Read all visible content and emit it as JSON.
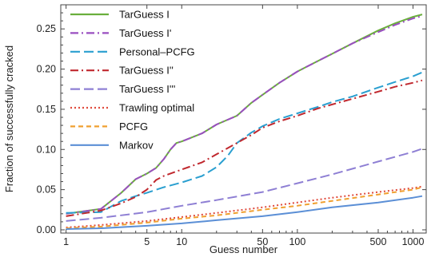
{
  "chart_data": {
    "type": "line",
    "xlabel": "Guess number",
    "ylabel": "Fraction of successfully cracked",
    "xscale": "log",
    "xlim": [
      0.9,
      1300
    ],
    "ylim": [
      -0.004,
      0.28
    ],
    "xticks": [
      1,
      5,
      10,
      50,
      100,
      500,
      1000
    ],
    "xtick_labels": [
      "1",
      "5",
      "10",
      "50",
      "100",
      "500",
      "1000"
    ],
    "yticks": [
      0,
      0.05,
      0.1,
      0.15,
      0.2,
      0.25
    ],
    "ytick_labels": [
      "0.00",
      "0.05",
      "0.10",
      "0.15",
      "0.20",
      "0.25"
    ],
    "grid": false,
    "legend_position": "top-left",
    "series": [
      {
        "name": "TarGuess I",
        "color": "#6aae3c",
        "dash": "solid",
        "x": [
          1,
          2,
          3,
          4,
          5,
          6,
          7,
          8,
          9,
          10,
          15,
          20,
          30,
          40,
          50,
          70,
          100,
          150,
          200,
          300,
          500,
          700,
          1000,
          1200
        ],
        "y": [
          0.02,
          0.026,
          0.046,
          0.063,
          0.07,
          0.077,
          0.088,
          0.1,
          0.108,
          0.11,
          0.12,
          0.131,
          0.142,
          0.158,
          0.168,
          0.183,
          0.197,
          0.21,
          0.219,
          0.232,
          0.248,
          0.257,
          0.265,
          0.268
        ]
      },
      {
        "name": "TarGuess I'",
        "color": "#9a4fc1",
        "dash": "dashdot",
        "x": [
          1,
          2,
          3,
          4,
          5,
          6,
          7,
          8,
          9,
          10,
          15,
          20,
          30,
          40,
          50,
          70,
          100,
          150,
          200,
          300,
          500,
          700,
          1000,
          1200
        ],
        "y": [
          0.02,
          0.026,
          0.046,
          0.063,
          0.07,
          0.077,
          0.088,
          0.1,
          0.108,
          0.11,
          0.12,
          0.131,
          0.142,
          0.158,
          0.168,
          0.183,
          0.197,
          0.21,
          0.219,
          0.232,
          0.246,
          0.255,
          0.263,
          0.266
        ]
      },
      {
        "name": "Personal–PCFG",
        "color": "#2a9fd0",
        "dash": "longdash",
        "x": [
          1,
          2,
          3,
          4,
          5,
          7,
          10,
          15,
          20,
          25,
          30,
          40,
          50,
          70,
          100,
          150,
          200,
          300,
          500,
          700,
          1000,
          1200
        ],
        "y": [
          0.021,
          0.022,
          0.036,
          0.042,
          0.046,
          0.053,
          0.059,
          0.067,
          0.078,
          0.092,
          0.108,
          0.121,
          0.129,
          0.138,
          0.145,
          0.153,
          0.159,
          0.166,
          0.177,
          0.184,
          0.191,
          0.196
        ]
      },
      {
        "name": "TarGuess I''",
        "color": "#c0282e",
        "dash": "dashdot",
        "x": [
          1,
          2,
          3,
          4,
          5,
          6,
          7,
          10,
          15,
          20,
          30,
          40,
          50,
          70,
          100,
          150,
          200,
          300,
          500,
          700,
          1000,
          1200
        ],
        "y": [
          0.017,
          0.024,
          0.033,
          0.041,
          0.05,
          0.062,
          0.067,
          0.075,
          0.084,
          0.094,
          0.108,
          0.118,
          0.127,
          0.135,
          0.142,
          0.151,
          0.156,
          0.163,
          0.172,
          0.178,
          0.183,
          0.186
        ]
      },
      {
        "name": "TarGuess I'''",
        "color": "#8e7fd4",
        "dash": "longdash",
        "x": [
          1,
          2,
          5,
          10,
          20,
          50,
          100,
          200,
          500,
          1000,
          1200
        ],
        "y": [
          0.011,
          0.015,
          0.022,
          0.03,
          0.037,
          0.047,
          0.058,
          0.069,
          0.085,
          0.097,
          0.101
        ]
      },
      {
        "name": "Trawling optimal",
        "color": "#e04a3c",
        "dash": "dotted",
        "x": [
          1,
          2,
          5,
          10,
          20,
          50,
          100,
          200,
          500,
          1000,
          1200
        ],
        "y": [
          0.003,
          0.006,
          0.011,
          0.016,
          0.021,
          0.028,
          0.034,
          0.04,
          0.047,
          0.052,
          0.054
        ]
      },
      {
        "name": "PCFG",
        "color": "#f0a030",
        "dash": "dashed",
        "x": [
          1,
          2,
          5,
          10,
          20,
          50,
          100,
          200,
          500,
          1000,
          1200
        ],
        "y": [
          0.002,
          0.004,
          0.009,
          0.014,
          0.018,
          0.025,
          0.03,
          0.036,
          0.044,
          0.05,
          0.053
        ]
      },
      {
        "name": "Markov",
        "color": "#5b8fd6",
        "dash": "solid",
        "x": [
          1,
          2,
          5,
          10,
          20,
          50,
          100,
          200,
          500,
          1000,
          1200
        ],
        "y": [
          0.001,
          0.002,
          0.005,
          0.008,
          0.012,
          0.017,
          0.022,
          0.028,
          0.034,
          0.04,
          0.042
        ]
      }
    ]
  }
}
